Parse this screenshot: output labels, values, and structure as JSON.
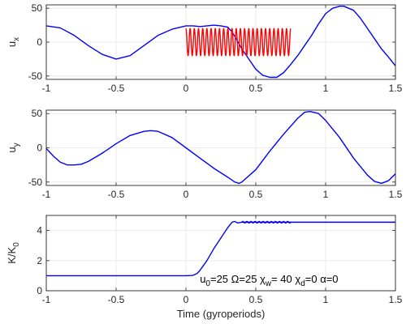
{
  "chart_data": [
    {
      "type": "line",
      "panel": "top",
      "ylabel": "u",
      "ylabel_sub": "x",
      "xlim": [
        -1,
        1.5
      ],
      "ylim": [
        -55,
        55
      ],
      "xticks": [
        "-1",
        "-0.5",
        "0",
        "0.5",
        "1",
        "1.5"
      ],
      "yticks": [
        "-50",
        "0",
        "50"
      ],
      "grid": true,
      "series": [
        {
          "color": "#0000ff",
          "x": [
            -1.0,
            -0.9,
            -0.8,
            -0.7,
            -0.6,
            -0.5,
            -0.4,
            -0.3,
            -0.2,
            -0.1,
            0.0,
            0.05,
            0.1,
            0.15,
            0.2,
            0.25,
            0.3,
            0.33,
            0.36,
            0.4,
            0.45,
            0.5,
            0.55,
            0.6,
            0.65,
            0.7,
            0.75,
            0.8,
            0.85,
            0.9,
            0.95,
            1.0,
            1.05,
            1.1,
            1.13,
            1.2,
            1.25,
            1.3,
            1.35,
            1.4,
            1.45,
            1.5
          ],
          "y": [
            24,
            21,
            10,
            -5,
            -18,
            -25,
            -20,
            -5,
            10,
            19,
            24,
            24,
            23,
            24,
            25,
            24,
            22,
            15,
            5,
            -10,
            -25,
            -40,
            -49,
            -52,
            -52,
            -45,
            -33,
            -20,
            -5,
            10,
            27,
            42,
            50,
            53,
            53,
            47,
            35,
            20,
            5,
            -10,
            -22,
            -35
          ]
        },
        {
          "color": "#ff0000",
          "oscillation": {
            "x_start": 0.0,
            "x_end": 0.75,
            "cycles": 25,
            "amplitude": 20,
            "offset": 0
          }
        }
      ]
    },
    {
      "type": "line",
      "panel": "middle",
      "ylabel": "u",
      "ylabel_sub": "y",
      "xlim": [
        -1,
        1.5
      ],
      "ylim": [
        -55,
        55
      ],
      "xticks": [
        "-1",
        "-0.5",
        "0",
        "0.5",
        "1",
        "1.5"
      ],
      "yticks": [
        "-50",
        "0",
        "50"
      ],
      "grid": true,
      "series": [
        {
          "color": "#0000ff",
          "x": [
            -1.0,
            -0.95,
            -0.9,
            -0.85,
            -0.8,
            -0.75,
            -0.7,
            -0.6,
            -0.5,
            -0.4,
            -0.3,
            -0.25,
            -0.2,
            -0.1,
            0.0,
            0.1,
            0.2,
            0.3,
            0.35,
            0.38,
            0.4,
            0.5,
            0.6,
            0.7,
            0.8,
            0.85,
            0.89,
            0.95,
            1.0,
            1.1,
            1.2,
            1.3,
            1.35,
            1.4,
            1.45,
            1.5
          ],
          "y": [
            -1,
            -12,
            -21,
            -25,
            -25,
            -24,
            -20,
            -8,
            6,
            18,
            24,
            25,
            24,
            15,
            0,
            -15,
            -30,
            -43,
            -50,
            -52,
            -50,
            -32,
            -5,
            20,
            43,
            52,
            53,
            50,
            40,
            15,
            -15,
            -40,
            -49,
            -52,
            -48,
            -38
          ]
        }
      ]
    },
    {
      "type": "line",
      "panel": "bottom",
      "ylabel": "K/K",
      "ylabel_sub": "0",
      "xlabel": "Time  (gyroperiods)",
      "xlim": [
        -1,
        1.5
      ],
      "ylim": [
        0,
        5
      ],
      "xticks": [
        "-1",
        "-0.5",
        "0",
        "0.5",
        "1",
        "1.5"
      ],
      "yticks": [
        "0",
        "2",
        "4"
      ],
      "grid": true,
      "series": [
        {
          "color": "#0000ff",
          "x": [
            -1.0,
            0.0,
            0.05,
            0.08,
            0.1,
            0.15,
            0.2,
            0.25,
            0.3,
            0.33,
            0.35,
            0.37,
            0.4,
            1.5
          ],
          "y": [
            1.0,
            1.0,
            1.02,
            1.15,
            1.35,
            2.0,
            2.8,
            3.5,
            4.2,
            4.55,
            4.6,
            4.5,
            4.55,
            4.55
          ]
        }
      ],
      "ripple": {
        "x_start": 0.4,
        "x_end": 0.75,
        "cycles": 12,
        "amplitude": 0.05
      },
      "annotation": {
        "parts": [
          {
            "t": "u",
            "sub": false
          },
          {
            "t": "0",
            "sub": true
          },
          {
            "t": "=25 Ω=25 χ",
            "sub": false
          },
          {
            "t": "w",
            "sub": true
          },
          {
            "t": "= 40 χ",
            "sub": false
          },
          {
            "t": "d",
            "sub": true
          },
          {
            "t": "=0 α=0",
            "sub": false
          }
        ]
      }
    }
  ]
}
